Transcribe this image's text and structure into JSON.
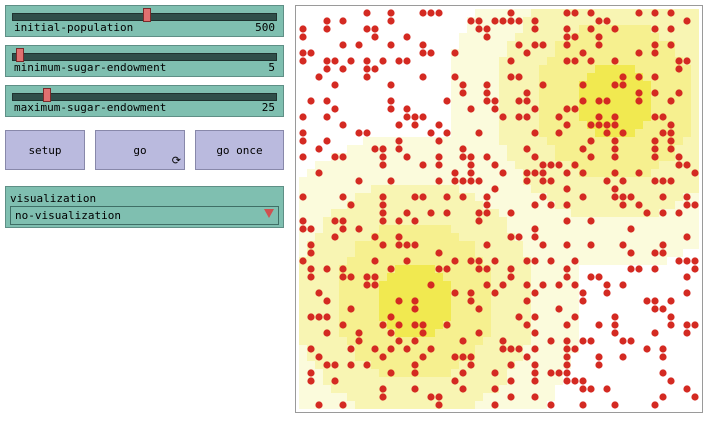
{
  "sliders": [
    {
      "name": "initial-population",
      "label": "initial-population",
      "value": "500",
      "fraction": 0.48
    },
    {
      "name": "minimum-sugar-endowment",
      "label": "minimum-sugar-endowment",
      "value": "5",
      "fraction": 0.02
    },
    {
      "name": "maximum-sugar-endowment",
      "label": "maximum-sugar-endowment",
      "value": "25",
      "fraction": 0.1
    }
  ],
  "buttons": {
    "setup_label": "setup",
    "go_label": "go",
    "go_once_label": "go once"
  },
  "chooser": {
    "label": "visualization",
    "selected": "no-visualization"
  },
  "world": {
    "patch_colors": {
      "white": "#ffffff",
      "sugar_low": "#fbfbdc",
      "sugar_mid1": "#f8f5b3",
      "sugar_mid2": "#f6f08f",
      "sugar_high": "#f1e950"
    },
    "agent_color": "#d42a22",
    "agent_count": 500
  }
}
